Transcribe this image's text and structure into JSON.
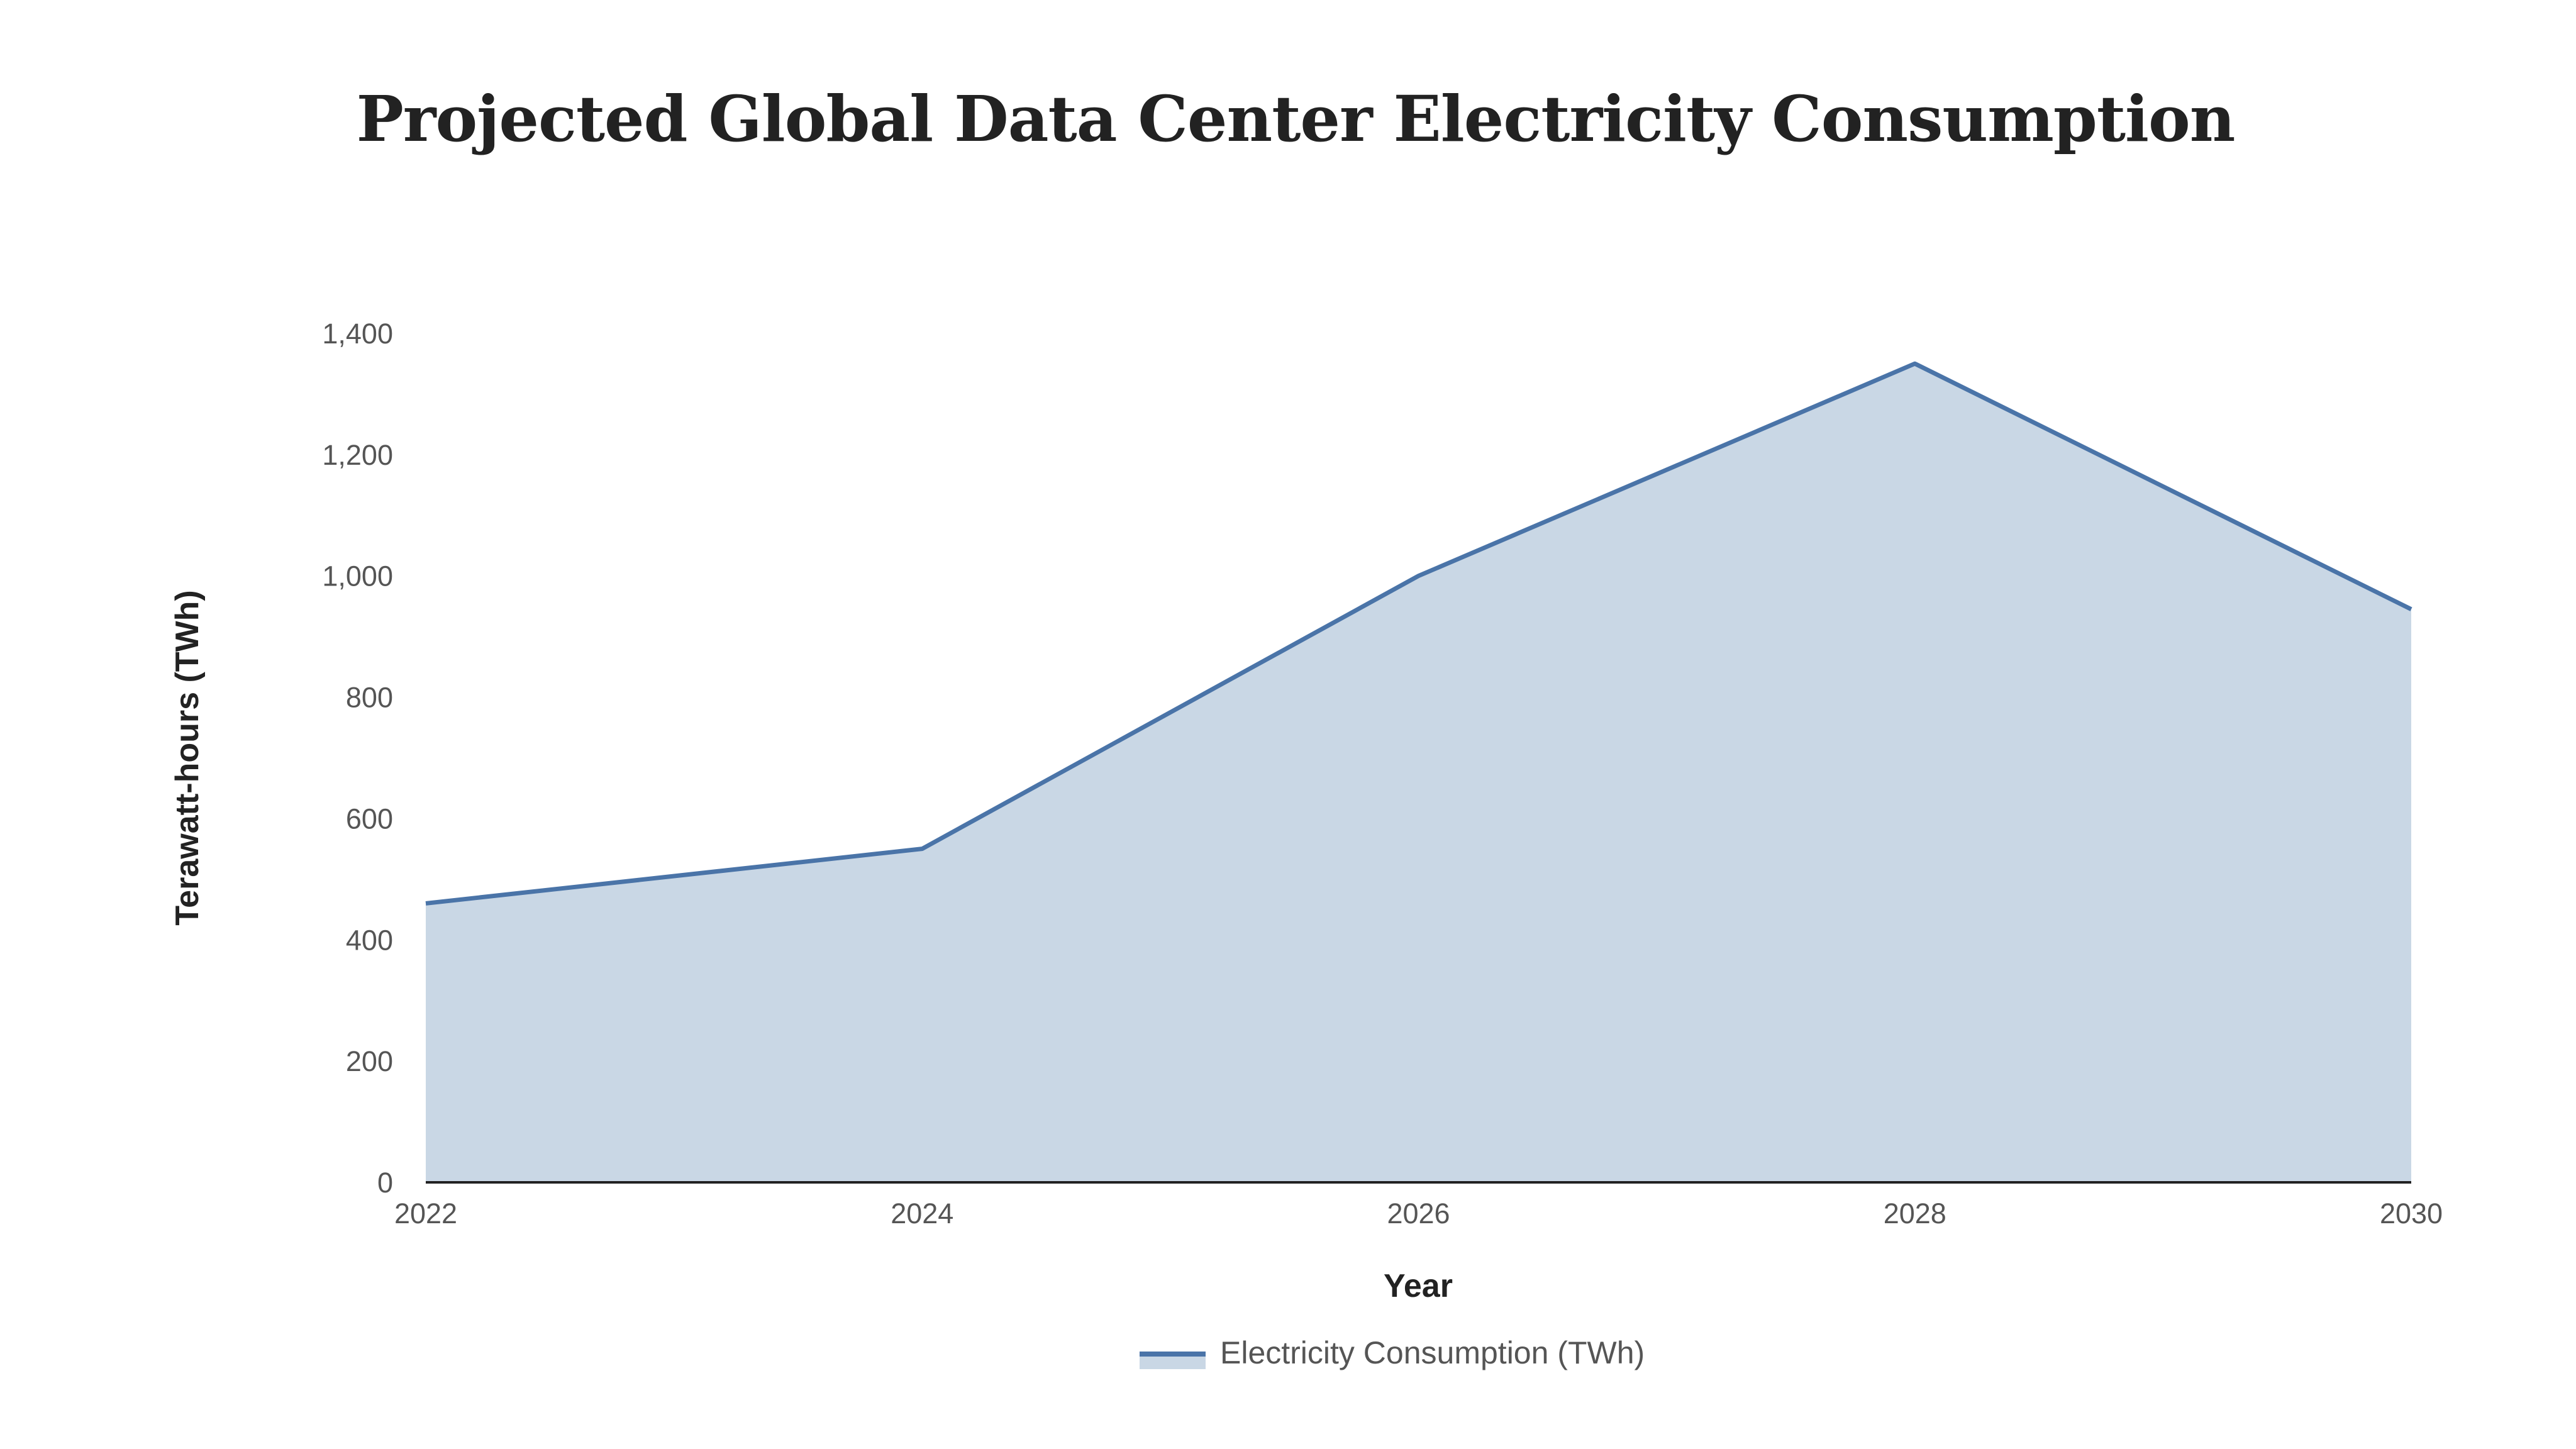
{
  "chart_data": {
    "type": "area",
    "title": "Projected Global Data Center Electricity Consumption",
    "xlabel": "Year",
    "ylabel": "Terawatt-hours (TWh)",
    "x": [
      2022,
      2024,
      2026,
      2028,
      2030
    ],
    "x_tick_labels": [
      "2022",
      "2024",
      "2026",
      "2028",
      "2030"
    ],
    "y_tick_labels": [
      "0",
      "200",
      "400",
      "600",
      "800",
      "1,000",
      "1,200",
      "1,400"
    ],
    "y_ticks": [
      0,
      200,
      400,
      600,
      800,
      1000,
      1200,
      1400
    ],
    "ylim": [
      0,
      1400
    ],
    "xlim": [
      2022,
      2030
    ],
    "grid": false,
    "legend_position": "bottom-center",
    "series": [
      {
        "name": "Electricity Consumption (TWh)",
        "values": [
          460,
          550,
          1000,
          1350,
          945
        ],
        "line_color": "#4a74a8",
        "fill_color": "#c9d7e5"
      }
    ]
  }
}
